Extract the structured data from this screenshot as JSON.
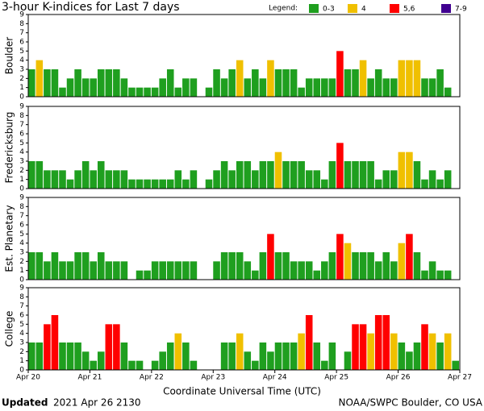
{
  "chart_data": {
    "type": "bar",
    "title": "3-hour K-indices for Last 7 days",
    "legend_title": "Legend:",
    "legend": [
      {
        "label": "0-3",
        "color": "#1f9f1f"
      },
      {
        "label": "4",
        "color": "#f0c000"
      },
      {
        "label": "5,6",
        "color": "#ff0000"
      },
      {
        "label": "7-9",
        "color": "#400090"
      }
    ],
    "day_labels": [
      "Apr 20",
      "Apr 21",
      "Apr 22",
      "Apr 23",
      "Apr 24",
      "Apr 25",
      "Apr 26",
      "Apr 27"
    ],
    "x_label": "Coordinate Universal Time (UTC)",
    "ylim": [
      0,
      9
    ],
    "yticks": [
      0,
      1,
      2,
      3,
      4,
      5,
      6,
      7,
      8,
      9
    ],
    "series": [
      {
        "name": "Boulder",
        "values": [
          3,
          4,
          3,
          3,
          1,
          2,
          3,
          2,
          2,
          3,
          3,
          3,
          2,
          1,
          1,
          1,
          1,
          2,
          3,
          1,
          2,
          2,
          0,
          1,
          3,
          2,
          3,
          4,
          2,
          3,
          2,
          4,
          3,
          3,
          3,
          1,
          2,
          2,
          2,
          2,
          5,
          3,
          3,
          4,
          2,
          3,
          2,
          2,
          4,
          4,
          4,
          2,
          2,
          3,
          1,
          0
        ]
      },
      {
        "name": "Fredericksburg",
        "values": [
          3,
          3,
          2,
          2,
          2,
          1,
          2,
          3,
          2,
          3,
          2,
          2,
          2,
          1,
          1,
          1,
          1,
          1,
          1,
          2,
          1,
          2,
          0,
          1,
          2,
          3,
          2,
          3,
          3,
          2,
          3,
          3,
          4,
          3,
          3,
          3,
          2,
          2,
          1,
          3,
          5,
          3,
          3,
          3,
          3,
          1,
          2,
          2,
          4,
          4,
          3,
          1,
          2,
          1,
          2,
          0
        ]
      },
      {
        "name": "Est. Planetary",
        "values": [
          3,
          3,
          2,
          3,
          2,
          2,
          3,
          3,
          2,
          3,
          2,
          2,
          2,
          0,
          1,
          1,
          2,
          2,
          2,
          2,
          2,
          2,
          0,
          0,
          2,
          3,
          3,
          3,
          2,
          1,
          3,
          5,
          3,
          3,
          2,
          2,
          2,
          1,
          2,
          3,
          5,
          4,
          3,
          3,
          3,
          2,
          3,
          2,
          4,
          5,
          3,
          1,
          2,
          1,
          1,
          0
        ]
      },
      {
        "name": "College",
        "values": [
          3,
          3,
          5,
          6,
          3,
          3,
          3,
          2,
          1,
          2,
          5,
          5,
          3,
          1,
          1,
          0,
          1,
          2,
          3,
          4,
          3,
          1,
          0,
          0,
          0,
          3,
          3,
          4,
          2,
          1,
          3,
          2,
          3,
          3,
          3,
          4,
          6,
          3,
          1,
          3,
          0,
          2,
          5,
          5,
          4,
          6,
          6,
          4,
          3,
          2,
          3,
          5,
          4,
          3,
          4,
          1
        ]
      }
    ],
    "footer_bold": "Updated",
    "footer_date": "2021 Apr 26 2130",
    "footer_right": "NOAA/SWPC Boulder, CO USA"
  }
}
